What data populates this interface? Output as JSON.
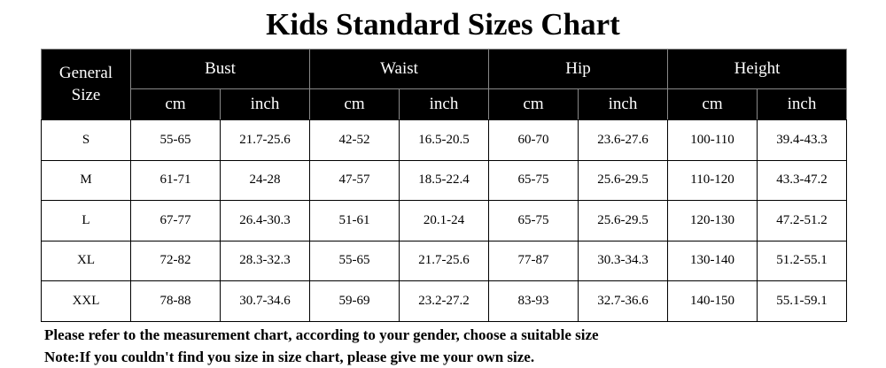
{
  "title": "Kids Standard Sizes Chart",
  "table": {
    "corner": "General Size",
    "groups": [
      {
        "name": "Bust",
        "units": [
          "cm",
          "inch"
        ]
      },
      {
        "name": "Waist",
        "units": [
          "cm",
          "inch"
        ]
      },
      {
        "name": "Hip",
        "units": [
          "cm",
          "inch"
        ]
      },
      {
        "name": "Height",
        "units": [
          "cm",
          "inch"
        ]
      }
    ],
    "rows": [
      [
        "S",
        "55-65",
        "21.7-25.6",
        "42-52",
        "16.5-20.5",
        "60-70",
        "23.6-27.6",
        "100-110",
        "39.4-43.3"
      ],
      [
        "M",
        "61-71",
        "24-28",
        "47-57",
        "18.5-22.4",
        "65-75",
        "25.6-29.5",
        "110-120",
        "43.3-47.2"
      ],
      [
        "L",
        "67-77",
        "26.4-30.3",
        "51-61",
        "20.1-24",
        "65-75",
        "25.6-29.5",
        "120-130",
        "47.2-51.2"
      ],
      [
        "XL",
        "72-82",
        "28.3-32.3",
        "55-65",
        "21.7-25.6",
        "77-87",
        "30.3-34.3",
        "130-140",
        "51.2-55.1"
      ],
      [
        "XXL",
        "78-88",
        "30.7-34.6",
        "59-69",
        "23.2-27.2",
        "83-93",
        "32.7-36.6",
        "140-150",
        "55.1-59.1"
      ]
    ]
  },
  "notes": [
    "Please refer to the measurement chart, according to your gender, choose a suitable size",
    "Note:If you couldn't find you size in size chart, please give me your own size."
  ]
}
